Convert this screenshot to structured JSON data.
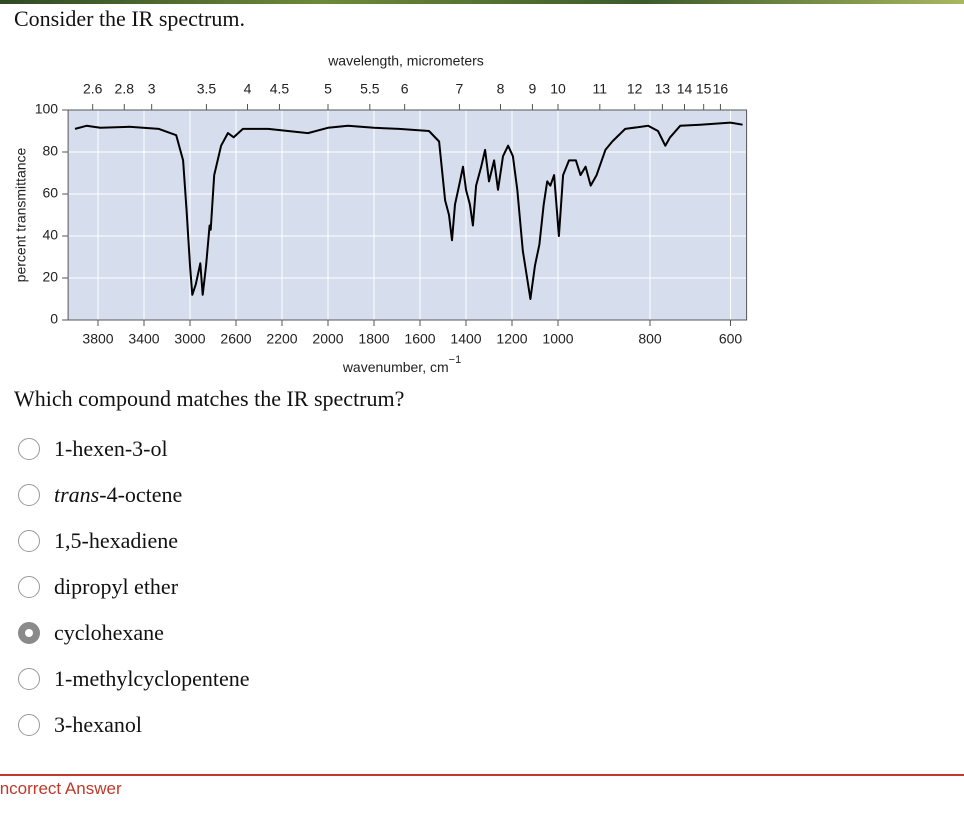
{
  "question": "Consider the IR spectrum.",
  "chart_data": {
    "type": "line",
    "x2_label": "wavelength, micrometers",
    "x_label": "wavenumber, cm",
    "x_label_superscript": "−1",
    "y_label": "percent transmittance",
    "xlim": [
      4060,
      560
    ],
    "ylim": [
      0,
      100
    ],
    "xticks": [
      3800,
      3400,
      3000,
      2600,
      2200,
      2000,
      1800,
      1600,
      1400,
      1200,
      1000,
      800,
      600
    ],
    "x2ticks": [
      2.6,
      2.8,
      3,
      3.5,
      4,
      4.5,
      5,
      5.5,
      6,
      7,
      8,
      9,
      10,
      11,
      12,
      13,
      14,
      15,
      16
    ],
    "yticks": [
      0,
      20,
      40,
      60,
      80,
      100
    ],
    "grid": true,
    "color": "#000000",
    "background": "#d6deee",
    "x": [
      4000,
      3900,
      3780,
      3530,
      3270,
      3120,
      3060,
      3030,
      3000,
      2980,
      2950,
      2910,
      2890,
      2860,
      2830,
      2820,
      2790,
      2730,
      2670,
      2620,
      2540,
      2320,
      2174,
      2087,
      2000,
      1913,
      1800,
      1691,
      1561,
      1517,
      1491,
      1474,
      1461,
      1448,
      1430,
      1413,
      1400,
      1383,
      1370,
      1356,
      1334,
      1317,
      1300,
      1278,
      1261,
      1239,
      1217,
      1196,
      1177,
      1153,
      1120,
      1100,
      1081,
      1062,
      1047,
      1033,
      1017,
      998,
      989,
      976,
      961,
      951,
      940,
      929,
      916,
      897,
      882,
      854,
      804,
      780,
      762,
      750,
      725,
      675,
      600,
      570
    ],
    "values": [
      91,
      92.5,
      91.5,
      92,
      91,
      88,
      76,
      52,
      26,
      12,
      17,
      27,
      12,
      26,
      45,
      43,
      69,
      83,
      89,
      87,
      91,
      91,
      90,
      89,
      91.5,
      92.5,
      91.5,
      91,
      90,
      85,
      57,
      50,
      38,
      55,
      64,
      73,
      62,
      55,
      45,
      64,
      73,
      81,
      66,
      76,
      62,
      78,
      83,
      78,
      62,
      33,
      10,
      26,
      36,
      55,
      66,
      64,
      69,
      40,
      69,
      76,
      76,
      69,
      73,
      64,
      69,
      81,
      85,
      91,
      92.5,
      90,
      83,
      87,
      92.5,
      93,
      94,
      93
    ]
  },
  "prompt": "Which compound matches the IR spectrum?",
  "options": [
    {
      "text": "1-hexen-3-ol"
    },
    {
      "italic": "trans",
      "text": "-4-octene"
    },
    {
      "text": "1,5-hexadiene"
    },
    {
      "text": "dipropyl ether"
    },
    {
      "text": "cyclohexane"
    },
    {
      "text": "1-methylcyclopentene"
    },
    {
      "text": "3-hexanol"
    }
  ],
  "selected": 4,
  "feedback": "Incorrect Answer"
}
